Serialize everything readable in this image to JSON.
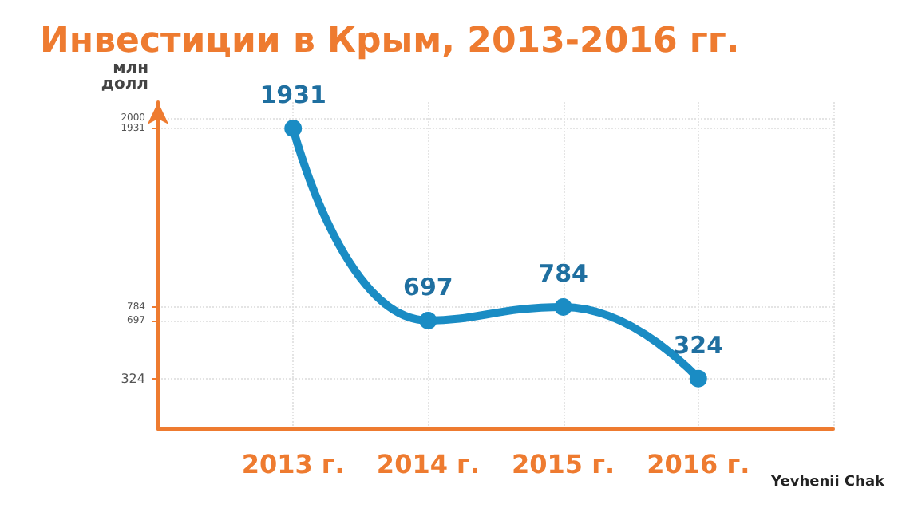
{
  "chart_data": {
    "type": "line",
    "title": "Инвестиции в Крым, 2013-2016 гг.",
    "ylabel": "млн\nдолл",
    "categories": [
      null,
      "2013 г.",
      "2014 г.",
      "2015 г.",
      "2016 г.",
      null
    ],
    "series": [
      {
        "color": "#1a8cc4",
        "values": [
          null,
          1931,
          697,
          784,
          324,
          null
        ]
      }
    ],
    "ylim": [
      0,
      2100
    ],
    "yticks": [
      324,
      697,
      784,
      1931,
      2000
    ],
    "grid": true,
    "marker": "circle",
    "line_style": "solid",
    "data_labels": true,
    "annotations": [
      "Yevhenii Chak"
    ]
  }
}
